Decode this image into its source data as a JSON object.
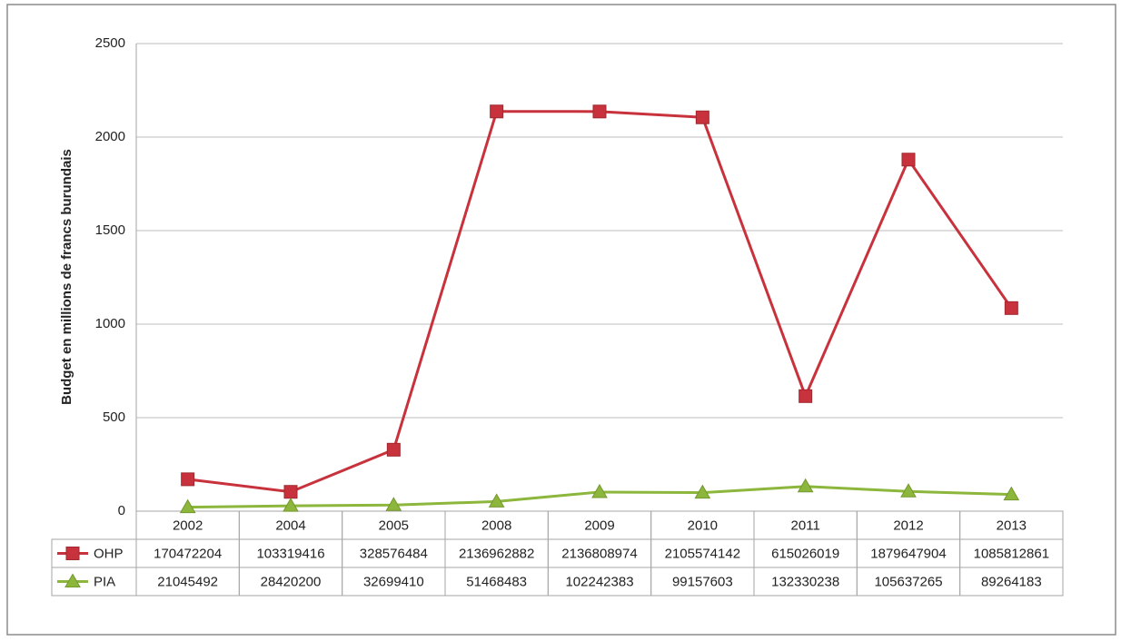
{
  "chart_data": {
    "type": "line",
    "y_axis_label": "Budget en millions de francs burundais",
    "categories": [
      "2002",
      "2004",
      "2005",
      "2008",
      "2009",
      "2010",
      "2011",
      "2012",
      "2013"
    ],
    "series": [
      {
        "name": "OHP",
        "color": "#c8323c",
        "values": [
          170.472204,
          103.319416,
          328.576484,
          2136.962882,
          2136.808974,
          2105.574142,
          615.026019,
          1879.647904,
          1085.812861
        ],
        "value_labels": [
          "170472204",
          "103319416",
          "328576484",
          "2136962882",
          "2136808974",
          "2105574142",
          "615026019",
          "1879647904",
          "1085812861"
        ]
      },
      {
        "name": "PIA",
        "color": "#8db63c",
        "values": [
          21.045492,
          28.4202,
          32.69941,
          51.468483,
          102.242383,
          99.157603,
          132.330238,
          105.637265,
          89.264183
        ],
        "value_labels": [
          "21045492",
          "28420200",
          "32699410",
          "51468483",
          "102242383",
          "99157603",
          "132330238",
          "105637265",
          "89264183"
        ]
      }
    ],
    "ylim": [
      0,
      2500
    ],
    "yticks": [
      0,
      500,
      1000,
      1500,
      2000,
      2500
    ],
    "grid": true
  }
}
